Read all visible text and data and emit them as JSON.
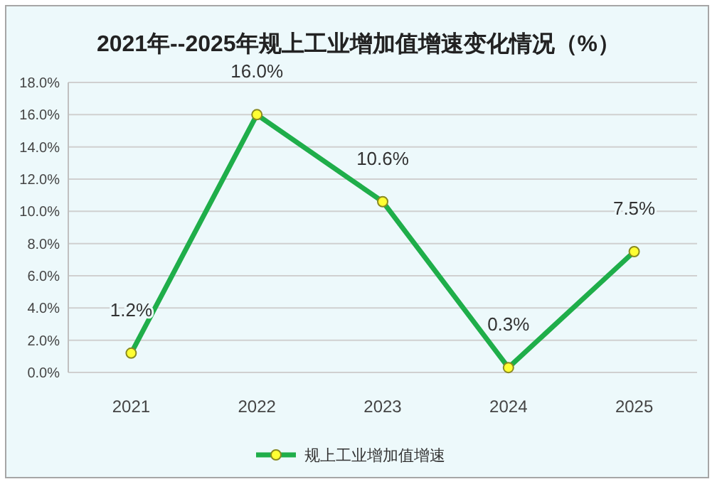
{
  "chart_data": {
    "type": "line",
    "title": "2021年--2025年规上工业增加值增速变化情况（%）",
    "categories": [
      "2021",
      "2022",
      "2023",
      "2024",
      "2025"
    ],
    "series": [
      {
        "name": "规上工业增加值增速",
        "color": "#1fae4a",
        "values": [
          1.2,
          16.0,
          10.6,
          0.3,
          7.5
        ],
        "value_labels": [
          "1.2%",
          "16.0%",
          "10.6%",
          "0.3%",
          "7.5%"
        ]
      }
    ],
    "ylim": [
      0,
      18
    ],
    "yticks": [
      {
        "value": 0,
        "label": "0.0%"
      },
      {
        "value": 2,
        "label": "2.0%"
      },
      {
        "value": 4,
        "label": "4.0%"
      },
      {
        "value": 6,
        "label": "6.0%"
      },
      {
        "value": 8,
        "label": "8.0%"
      },
      {
        "value": 10,
        "label": "10.0%"
      },
      {
        "value": 12,
        "label": "12.0%"
      },
      {
        "value": 14,
        "label": "14.0%"
      },
      {
        "value": 16,
        "label": "16.0%"
      },
      {
        "value": 18,
        "label": "18.0%"
      }
    ],
    "grid": "y",
    "legend": "bottom",
    "marker": "circle",
    "line_style": "solid"
  }
}
